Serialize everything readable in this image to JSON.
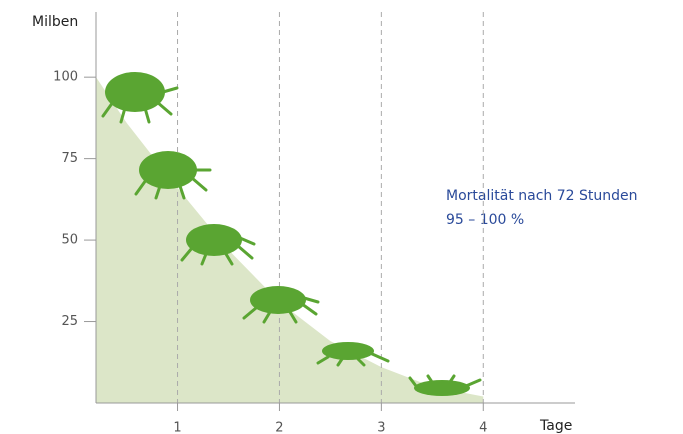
{
  "chart_data": {
    "type": "area",
    "y_label": "Milben",
    "x_label": "Tage",
    "annotation": [
      "Mortalität nach 72 Stunden",
      "95 – 100 %"
    ],
    "x": [
      0.2,
      0.5,
      1,
      1.5,
      2,
      2.5,
      3,
      3.5,
      4
    ],
    "values": [
      100,
      86,
      66,
      47,
      31,
      19,
      11,
      5,
      2
    ],
    "color": "#dce6c8",
    "xlim": [
      0.2,
      4.9
    ],
    "xticks": [
      1,
      2,
      3,
      4
    ],
    "ylim": [
      0,
      120
    ],
    "yticks": [
      25,
      50,
      75,
      100
    ],
    "grid": true
  }
}
